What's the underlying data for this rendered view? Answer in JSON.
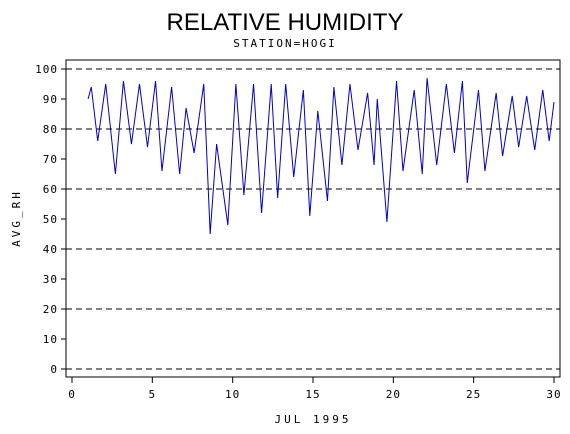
{
  "chart_data": {
    "type": "line",
    "title": "RELATIVE HUMIDITY",
    "subtitle": "STATION=HOGI",
    "x_label": "JUL 1995",
    "y_label": "AVG_RH",
    "xlim": [
      0,
      30
    ],
    "xticks": [
      0,
      5,
      10,
      15,
      20,
      25,
      30
    ],
    "ylim": [
      0,
      100
    ],
    "yticks": [
      0,
      10,
      20,
      30,
      40,
      50,
      60,
      70,
      80,
      90,
      100
    ],
    "ygrid": [
      0,
      20,
      40,
      60,
      80,
      100
    ],
    "series": [
      {
        "color": "#0000cc",
        "x": [
          1.0,
          1.2,
          1.6,
          2.1,
          2.7,
          3.2,
          3.7,
          4.2,
          4.7,
          5.2,
          5.6,
          6.2,
          6.7,
          7.1,
          7.6,
          8.2,
          8.6,
          9.0,
          9.7,
          10.2,
          10.7,
          11.3,
          11.8,
          12.4,
          12.8,
          13.3,
          13.8,
          14.4,
          14.8,
          15.3,
          15.9,
          16.3,
          16.8,
          17.3,
          17.8,
          18.4,
          18.8,
          19.0,
          19.6,
          20.2,
          20.6,
          21.3,
          21.8,
          22.1,
          22.7,
          23.3,
          23.8,
          24.3,
          24.6,
          25.3,
          25.7,
          26.4,
          26.8,
          27.4,
          27.8,
          28.3,
          28.8,
          29.3,
          29.7,
          30.0
        ],
        "values": [
          90,
          94,
          76,
          95,
          65,
          96,
          75,
          95,
          74,
          96,
          66,
          94,
          65,
          87,
          72,
          95,
          45,
          75,
          48,
          95,
          58,
          95,
          52,
          95,
          57,
          95,
          64,
          93,
          51,
          86,
          56,
          94,
          68,
          95,
          73,
          92,
          68,
          90,
          49,
          96,
          66,
          93,
          65,
          97,
          68,
          95,
          72,
          96,
          62,
          93,
          66,
          92,
          71,
          91,
          74,
          91,
          73,
          93,
          76,
          89
        ]
      }
    ]
  }
}
